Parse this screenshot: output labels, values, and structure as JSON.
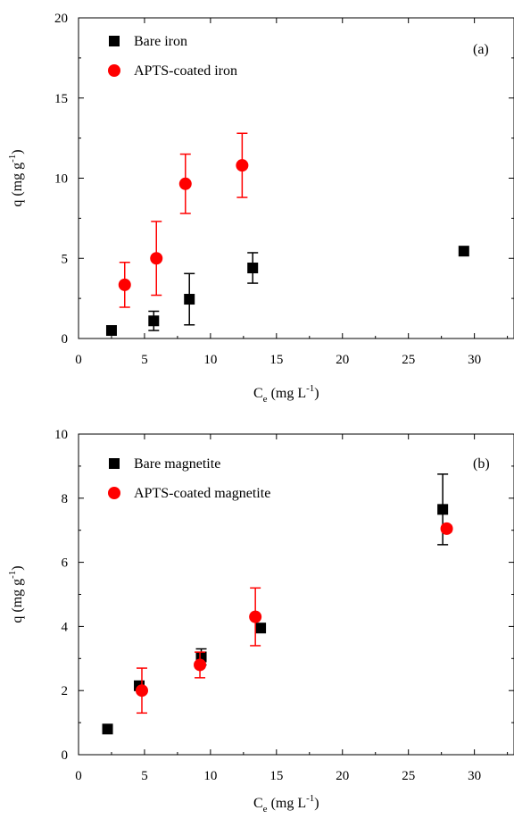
{
  "chart_data": [
    {
      "type": "scatter",
      "panel_label": "(a)",
      "xlabel": "C",
      "xlabel_sub": "e",
      "xlabel_unit_main": "(mg L",
      "xlabel_unit_sup": "-1",
      "xlabel_unit_end": ")",
      "ylabel": "q (mg g",
      "ylabel_sup": "-1",
      "ylabel_end": ")",
      "xlim": [
        0,
        33
      ],
      "ylim": [
        0,
        20
      ],
      "xticks": [
        0,
        5,
        10,
        15,
        20,
        25,
        30
      ],
      "xtick_labels": [
        "0",
        "5",
        "10",
        "15",
        "20",
        "25",
        "30"
      ],
      "yticks": [
        0,
        5,
        10,
        15,
        20
      ],
      "ytick_labels": [
        "0",
        "5",
        "10",
        "15",
        "20"
      ],
      "legend_position": "top-left",
      "grid": false,
      "series": [
        {
          "name": "Bare iron",
          "marker": "square",
          "color": "#000000",
          "points": [
            {
              "x": 2.5,
              "y": 0.5,
              "err": 0
            },
            {
              "x": 5.7,
              "y": 1.1,
              "err": 0.6
            },
            {
              "x": 8.4,
              "y": 2.45,
              "err": 1.6
            },
            {
              "x": 13.2,
              "y": 4.4,
              "err": 0.95
            },
            {
              "x": 29.2,
              "y": 5.45,
              "err": 0
            }
          ]
        },
        {
          "name": "APTS-coated iron",
          "marker": "circle",
          "color": "#ff0000",
          "points": [
            {
              "x": 3.5,
              "y": 3.35,
              "err": 1.4
            },
            {
              "x": 5.9,
              "y": 5.0,
              "err": 2.3
            },
            {
              "x": 8.1,
              "y": 9.65,
              "err": 1.85
            },
            {
              "x": 12.4,
              "y": 10.8,
              "err": 2.0
            }
          ]
        }
      ]
    },
    {
      "type": "scatter",
      "panel_label": "(b)",
      "xlabel": "C",
      "xlabel_sub": "e",
      "xlabel_unit_main": "(mg L",
      "xlabel_unit_sup": "-1",
      "xlabel_unit_end": ")",
      "ylabel": "q (mg g",
      "ylabel_sup": "-1",
      "ylabel_end": ")",
      "xlim": [
        0,
        33
      ],
      "ylim": [
        0,
        10
      ],
      "xticks": [
        0,
        5,
        10,
        15,
        20,
        25,
        30
      ],
      "xtick_labels": [
        "0",
        "5",
        "10",
        "15",
        "20",
        "25",
        "30"
      ],
      "yticks": [
        0,
        2,
        4,
        6,
        8,
        10
      ],
      "ytick_labels": [
        "0",
        "2",
        "4",
        "6",
        "8",
        "10"
      ],
      "legend_position": "top-left",
      "grid": false,
      "series": [
        {
          "name": "Bare magnetite",
          "marker": "square",
          "color": "#000000",
          "points": [
            {
              "x": 2.2,
              "y": 0.8,
              "err": 0
            },
            {
              "x": 4.6,
              "y": 2.15,
              "err": 0
            },
            {
              "x": 9.3,
              "y": 3.05,
              "err": 0.25
            },
            {
              "x": 13.8,
              "y": 3.95,
              "err": 0
            },
            {
              "x": 27.6,
              "y": 7.65,
              "err": 1.1
            }
          ]
        },
        {
          "name": "APTS-coated magnetite",
          "marker": "circle",
          "color": "#ff0000",
          "points": [
            {
              "x": 4.8,
              "y": 2.0,
              "err": 0.7
            },
            {
              "x": 9.2,
              "y": 2.8,
              "err": 0.4
            },
            {
              "x": 13.4,
              "y": 4.3,
              "err": 0.9
            },
            {
              "x": 27.9,
              "y": 7.05,
              "err": 0.1
            }
          ]
        }
      ]
    }
  ]
}
